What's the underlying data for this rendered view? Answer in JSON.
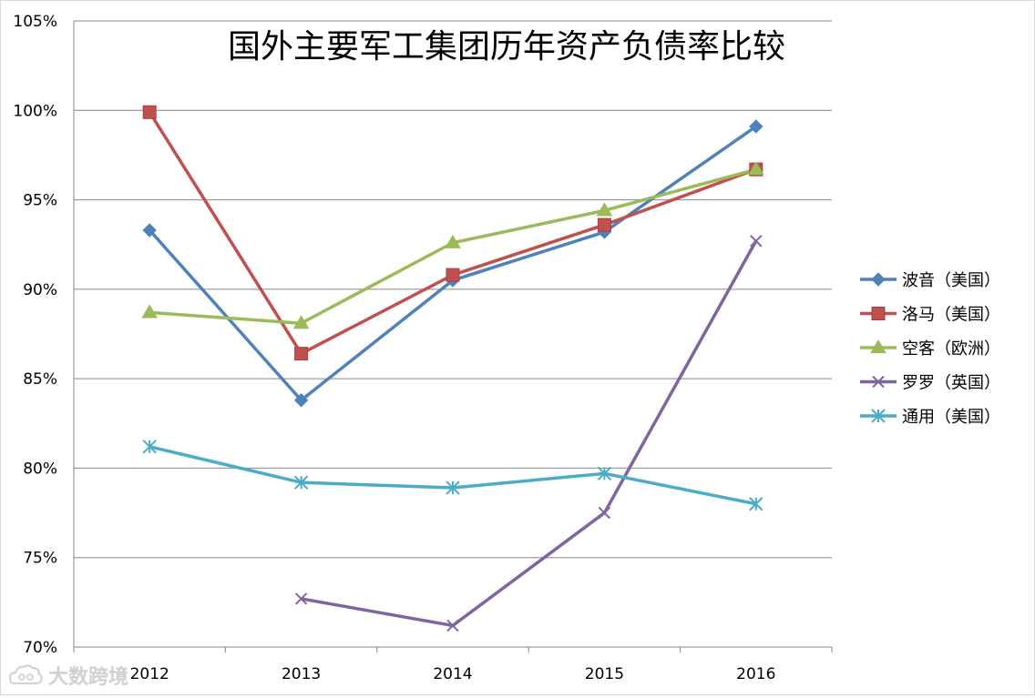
{
  "chart_data": {
    "type": "line",
    "title": "国外主要军工集团历年资产负债率比较",
    "xlabel": "",
    "ylabel": "",
    "categories": [
      "2012",
      "2013",
      "2014",
      "2015",
      "2016"
    ],
    "ylim": [
      0.7,
      1.05
    ],
    "yticks": [
      0.7,
      0.75,
      0.8,
      0.85,
      0.9,
      0.95,
      1.0,
      1.05
    ],
    "ytick_labels": [
      "70%",
      "75%",
      "80%",
      "85%",
      "90%",
      "95%",
      "100%",
      "105%"
    ],
    "grid": true,
    "legend_position": "right",
    "series": [
      {
        "name": "波音（美国）",
        "color": "#4f81bd",
        "marker": "diamond",
        "values": [
          0.933,
          0.838,
          0.905,
          0.932,
          0.991
        ]
      },
      {
        "name": "洛马（美国）",
        "color": "#c0504d",
        "marker": "square",
        "values": [
          0.999,
          0.864,
          0.908,
          0.936,
          0.967
        ]
      },
      {
        "name": "空客（欧洲）",
        "color": "#9bbb59",
        "marker": "triangle",
        "values": [
          0.887,
          0.881,
          0.926,
          0.944,
          0.967
        ]
      },
      {
        "name": "罗罗（英国）",
        "color": "#8064a2",
        "marker": "x",
        "values": [
          null,
          0.727,
          0.712,
          0.775,
          0.927
        ]
      },
      {
        "name": "通用（美国）",
        "color": "#4bacc6",
        "marker": "star",
        "values": [
          0.812,
          0.792,
          0.789,
          0.797,
          0.78
        ]
      }
    ]
  },
  "watermark": {
    "text": "大数跨境",
    "icon": "cloud-logo-icon"
  }
}
